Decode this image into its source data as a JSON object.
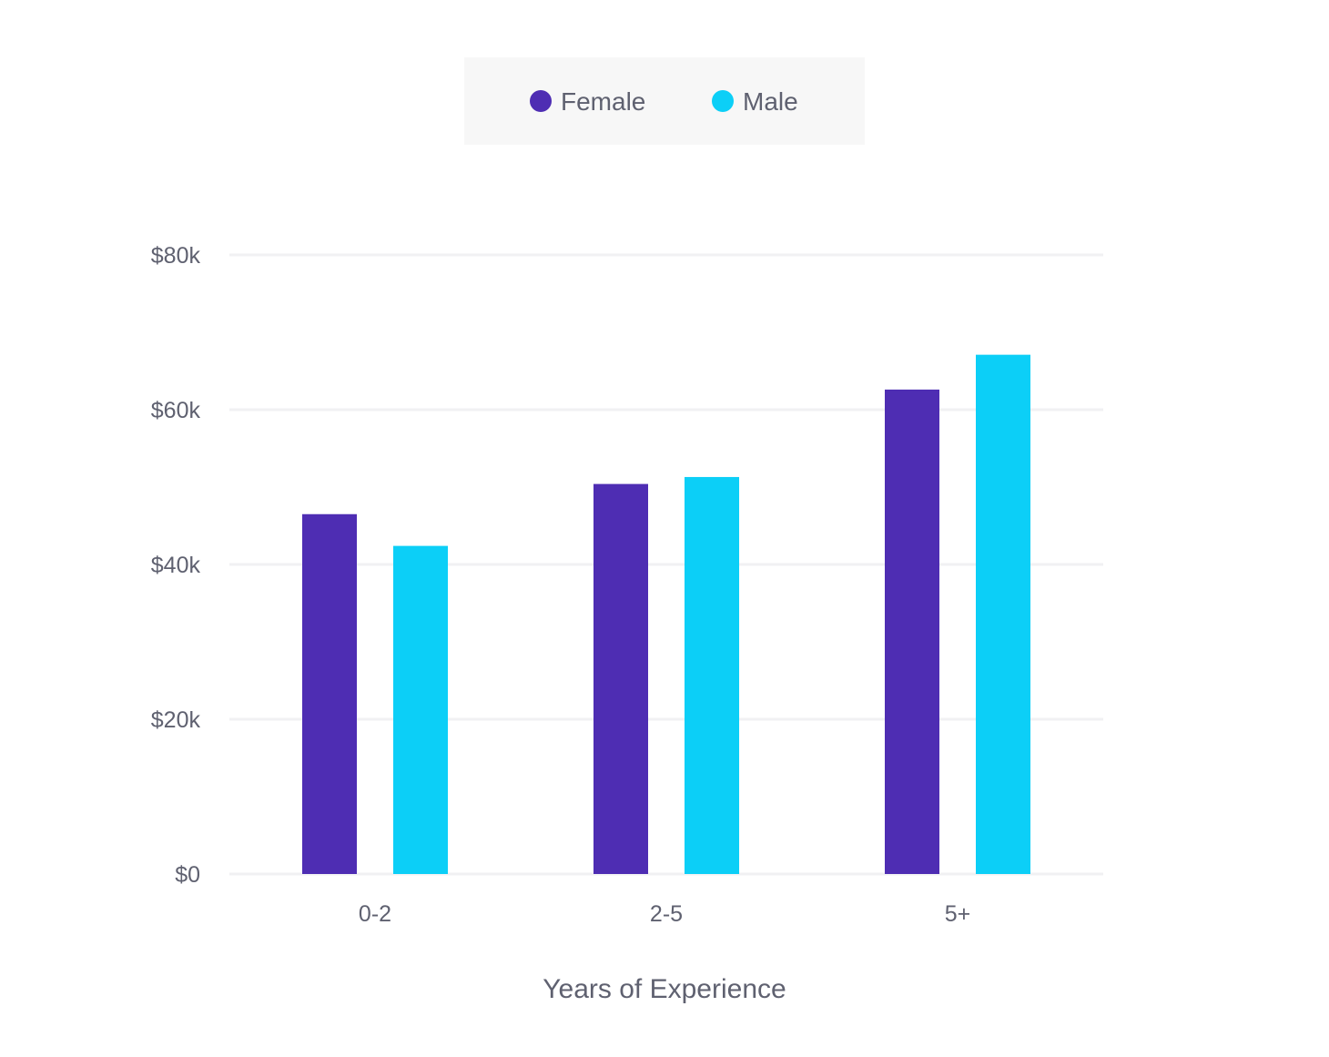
{
  "chart_data": {
    "type": "bar",
    "categories": [
      "0-2",
      "2-5",
      "5+"
    ],
    "series": [
      {
        "name": "Female",
        "color": "#4e2db3",
        "values": [
          46500,
          50400,
          62600
        ]
      },
      {
        "name": "Male",
        "color": "#0ccff7",
        "values": [
          42400,
          51300,
          67100
        ]
      }
    ],
    "xlabel": "Years of Experience",
    "ylabel": "",
    "ylim": [
      0,
      80000
    ],
    "yticks": [
      {
        "value": 0,
        "label": "$0"
      },
      {
        "value": 20000,
        "label": "$20k"
      },
      {
        "value": 40000,
        "label": "$40k"
      },
      {
        "value": 60000,
        "label": "$60k"
      },
      {
        "value": 80000,
        "label": "$80k"
      }
    ],
    "grid": true,
    "legend_position": "top"
  }
}
